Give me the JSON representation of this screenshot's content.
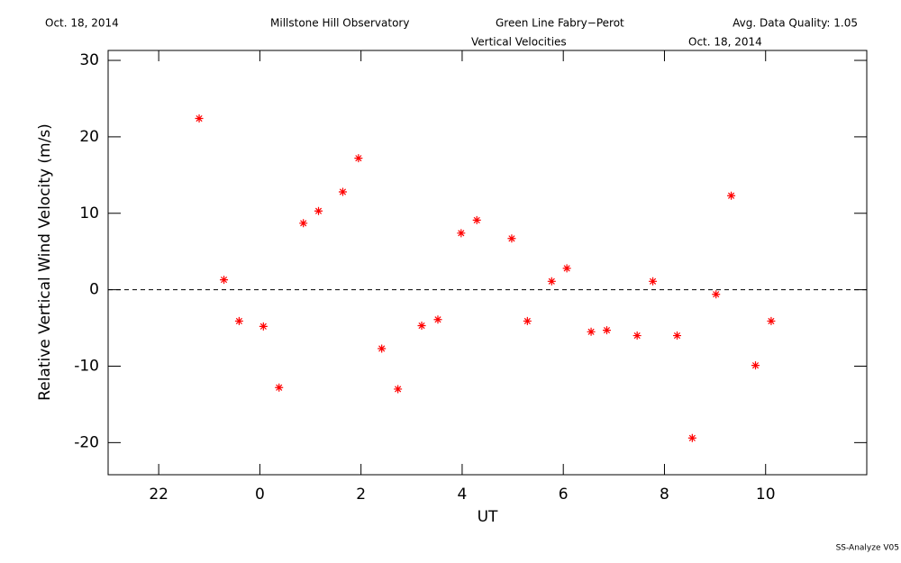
{
  "header": {
    "date": "Oct. 18, 2014",
    "observatory": "Millstone Hill Observatory",
    "instrument": "Green Line Fabry−Perot",
    "quality": "Avg. Data Quality: 1.05"
  },
  "footer": "SS-Analyze V05",
  "chart_data": {
    "type": "scatter",
    "title": "Vertical Velocities",
    "subtitle": "Oct. 18, 2014",
    "x_label": "UT",
    "y_label": "Relative Vertical Wind Velocity (m/s)",
    "xlim": [
      21,
      36
    ],
    "ylim": [
      -24.2,
      31.3
    ],
    "xticks": [
      22,
      {
        "value": 24,
        "label": "0"
      },
      {
        "value": 26,
        "label": "2"
      },
      {
        "value": 28,
        "label": "4"
      },
      {
        "value": 30,
        "label": "6"
      },
      {
        "value": 32,
        "label": "8"
      },
      {
        "value": 34,
        "label": "10"
      }
    ],
    "yticks": [
      -20,
      -10,
      0,
      10,
      20,
      30
    ],
    "reference_line": 0,
    "series": [
      {
        "color": "#ff0000",
        "x": [
          22.8,
          23.29,
          23.59,
          24.07,
          24.38,
          24.86,
          25.16,
          25.64,
          25.95,
          26.41,
          26.73,
          27.2,
          27.52,
          27.98,
          28.29,
          28.98,
          29.29,
          29.77,
          30.07,
          30.55,
          30.86,
          31.46,
          31.77,
          32.25,
          32.55,
          33.02,
          33.32,
          33.8,
          34.11
        ],
        "values": [
          22.4,
          1.3,
          -4.1,
          -4.8,
          -12.8,
          8.7,
          10.3,
          12.8,
          17.2,
          -7.7,
          -13.0,
          -4.7,
          -3.9,
          7.4,
          9.1,
          6.7,
          -4.1,
          1.1,
          2.8,
          -5.5,
          -5.3,
          -6.0,
          1.1,
          -6.0,
          -19.4,
          -0.6,
          12.3,
          -9.9,
          -4.1
        ]
      }
    ]
  }
}
